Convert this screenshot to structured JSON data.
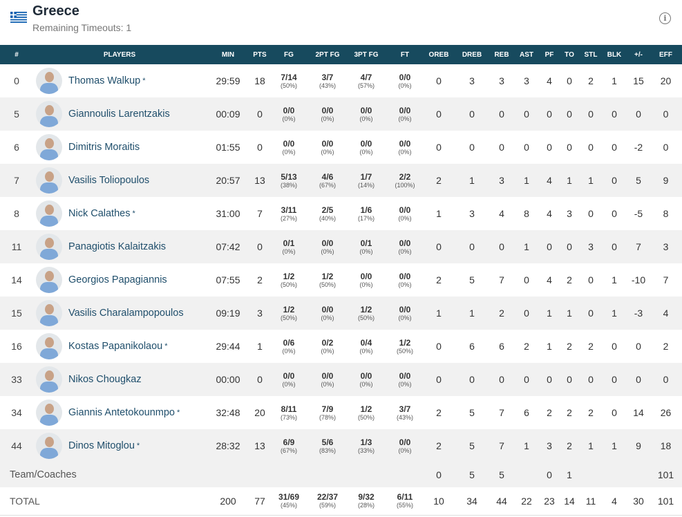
{
  "header": {
    "team_name": "Greece",
    "timeouts_label": "Remaining Timeouts: 1",
    "flag_icon": "greece-flag-icon",
    "info_icon_glyph": "i"
  },
  "columns": [
    "#",
    "PLAYERS",
    "MIN",
    "PTS",
    "FG",
    "2PT FG",
    "3PT FG",
    "FT",
    "OREB",
    "DREB",
    "REB",
    "AST",
    "PF",
    "TO",
    "STL",
    "BLK",
    "+/-",
    "EFF"
  ],
  "players": [
    {
      "num": "0",
      "name": "Thomas Walkup",
      "starter": "*",
      "min": "29:59",
      "pts": "18",
      "fg": "7/14",
      "fg_pct": "(50%)",
      "fg2": "3/7",
      "fg2_pct": "(43%)",
      "fg3": "4/7",
      "fg3_pct": "(57%)",
      "ft": "0/0",
      "ft_pct": "(0%)",
      "oreb": "0",
      "dreb": "3",
      "reb": "3",
      "ast": "3",
      "pf": "4",
      "to": "0",
      "stl": "2",
      "blk": "1",
      "pm": "15",
      "eff": "20"
    },
    {
      "num": "5",
      "name": "Giannoulis Larentzakis",
      "starter": "",
      "min": "00:09",
      "pts": "0",
      "fg": "0/0",
      "fg_pct": "(0%)",
      "fg2": "0/0",
      "fg2_pct": "(0%)",
      "fg3": "0/0",
      "fg3_pct": "(0%)",
      "ft": "0/0",
      "ft_pct": "(0%)",
      "oreb": "0",
      "dreb": "0",
      "reb": "0",
      "ast": "0",
      "pf": "0",
      "to": "0",
      "stl": "0",
      "blk": "0",
      "pm": "0",
      "eff": "0"
    },
    {
      "num": "6",
      "name": "Dimitris Moraitis",
      "starter": "",
      "min": "01:55",
      "pts": "0",
      "fg": "0/0",
      "fg_pct": "(0%)",
      "fg2": "0/0",
      "fg2_pct": "(0%)",
      "fg3": "0/0",
      "fg3_pct": "(0%)",
      "ft": "0/0",
      "ft_pct": "(0%)",
      "oreb": "0",
      "dreb": "0",
      "reb": "0",
      "ast": "0",
      "pf": "0",
      "to": "0",
      "stl": "0",
      "blk": "0",
      "pm": "-2",
      "eff": "0"
    },
    {
      "num": "7",
      "name": "Vasilis Toliopoulos",
      "starter": "",
      "min": "20:57",
      "pts": "13",
      "fg": "5/13",
      "fg_pct": "(38%)",
      "fg2": "4/6",
      "fg2_pct": "(67%)",
      "fg3": "1/7",
      "fg3_pct": "(14%)",
      "ft": "2/2",
      "ft_pct": "(100%)",
      "oreb": "2",
      "dreb": "1",
      "reb": "3",
      "ast": "1",
      "pf": "4",
      "to": "1",
      "stl": "1",
      "blk": "0",
      "pm": "5",
      "eff": "9"
    },
    {
      "num": "8",
      "name": "Nick Calathes",
      "starter": "*",
      "min": "31:00",
      "pts": "7",
      "fg": "3/11",
      "fg_pct": "(27%)",
      "fg2": "2/5",
      "fg2_pct": "(40%)",
      "fg3": "1/6",
      "fg3_pct": "(17%)",
      "ft": "0/0",
      "ft_pct": "(0%)",
      "oreb": "1",
      "dreb": "3",
      "reb": "4",
      "ast": "8",
      "pf": "4",
      "to": "3",
      "stl": "0",
      "blk": "0",
      "pm": "-5",
      "eff": "8"
    },
    {
      "num": "11",
      "name": "Panagiotis Kalaitzakis",
      "starter": "",
      "min": "07:42",
      "pts": "0",
      "fg": "0/1",
      "fg_pct": "(0%)",
      "fg2": "0/0",
      "fg2_pct": "(0%)",
      "fg3": "0/1",
      "fg3_pct": "(0%)",
      "ft": "0/0",
      "ft_pct": "(0%)",
      "oreb": "0",
      "dreb": "0",
      "reb": "0",
      "ast": "1",
      "pf": "0",
      "to": "0",
      "stl": "3",
      "blk": "0",
      "pm": "7",
      "eff": "3"
    },
    {
      "num": "14",
      "name": "Georgios Papagiannis",
      "starter": "",
      "min": "07:55",
      "pts": "2",
      "fg": "1/2",
      "fg_pct": "(50%)",
      "fg2": "1/2",
      "fg2_pct": "(50%)",
      "fg3": "0/0",
      "fg3_pct": "(0%)",
      "ft": "0/0",
      "ft_pct": "(0%)",
      "oreb": "2",
      "dreb": "5",
      "reb": "7",
      "ast": "0",
      "pf": "4",
      "to": "2",
      "stl": "0",
      "blk": "1",
      "pm": "-10",
      "eff": "7"
    },
    {
      "num": "15",
      "name": "Vasilis Charalampopoulos",
      "starter": "",
      "min": "09:19",
      "pts": "3",
      "fg": "1/2",
      "fg_pct": "(50%)",
      "fg2": "0/0",
      "fg2_pct": "(0%)",
      "fg3": "1/2",
      "fg3_pct": "(50%)",
      "ft": "0/0",
      "ft_pct": "(0%)",
      "oreb": "1",
      "dreb": "1",
      "reb": "2",
      "ast": "0",
      "pf": "1",
      "to": "1",
      "stl": "0",
      "blk": "1",
      "pm": "-3",
      "eff": "4"
    },
    {
      "num": "16",
      "name": "Kostas Papanikolaou",
      "starter": "*",
      "min": "29:44",
      "pts": "1",
      "fg": "0/6",
      "fg_pct": "(0%)",
      "fg2": "0/2",
      "fg2_pct": "(0%)",
      "fg3": "0/4",
      "fg3_pct": "(0%)",
      "ft": "1/2",
      "ft_pct": "(50%)",
      "oreb": "0",
      "dreb": "6",
      "reb": "6",
      "ast": "2",
      "pf": "1",
      "to": "2",
      "stl": "2",
      "blk": "0",
      "pm": "0",
      "eff": "2"
    },
    {
      "num": "33",
      "name": "Nikos Chougkaz",
      "starter": "",
      "min": "00:00",
      "pts": "0",
      "fg": "0/0",
      "fg_pct": "(0%)",
      "fg2": "0/0",
      "fg2_pct": "(0%)",
      "fg3": "0/0",
      "fg3_pct": "(0%)",
      "ft": "0/0",
      "ft_pct": "(0%)",
      "oreb": "0",
      "dreb": "0",
      "reb": "0",
      "ast": "0",
      "pf": "0",
      "to": "0",
      "stl": "0",
      "blk": "0",
      "pm": "0",
      "eff": "0"
    },
    {
      "num": "34",
      "name": "Giannis Antetokounmpo",
      "starter": "*",
      "min": "32:48",
      "pts": "20",
      "fg": "8/11",
      "fg_pct": "(73%)",
      "fg2": "7/9",
      "fg2_pct": "(78%)",
      "fg3": "1/2",
      "fg3_pct": "(50%)",
      "ft": "3/7",
      "ft_pct": "(43%)",
      "oreb": "2",
      "dreb": "5",
      "reb": "7",
      "ast": "6",
      "pf": "2",
      "to": "2",
      "stl": "2",
      "blk": "0",
      "pm": "14",
      "eff": "26"
    },
    {
      "num": "44",
      "name": "Dinos Mitoglou",
      "starter": "*",
      "min": "28:32",
      "pts": "13",
      "fg": "6/9",
      "fg_pct": "(67%)",
      "fg2": "5/6",
      "fg2_pct": "(83%)",
      "fg3": "1/3",
      "fg3_pct": "(33%)",
      "ft": "0/0",
      "ft_pct": "(0%)",
      "oreb": "2",
      "dreb": "5",
      "reb": "7",
      "ast": "1",
      "pf": "3",
      "to": "2",
      "stl": "1",
      "blk": "1",
      "pm": "9",
      "eff": "18"
    }
  ],
  "team_coaches": {
    "label": "Team/Coaches",
    "oreb": "0",
    "dreb": "5",
    "reb": "5",
    "ast": "",
    "pf": "0",
    "to": "1",
    "stl": "",
    "blk": "",
    "pm": "",
    "eff": "101"
  },
  "total": {
    "label": "TOTAL",
    "min": "200",
    "pts": "77",
    "fg": "31/69",
    "fg_pct": "(45%)",
    "fg2": "22/37",
    "fg2_pct": "(59%)",
    "fg3": "9/32",
    "fg3_pct": "(28%)",
    "ft": "6/11",
    "ft_pct": "(55%)",
    "oreb": "10",
    "dreb": "34",
    "reb": "44",
    "ast": "22",
    "pf": "23",
    "to": "14",
    "stl": "11",
    "blk": "4",
    "pm": "30",
    "eff": "101"
  }
}
